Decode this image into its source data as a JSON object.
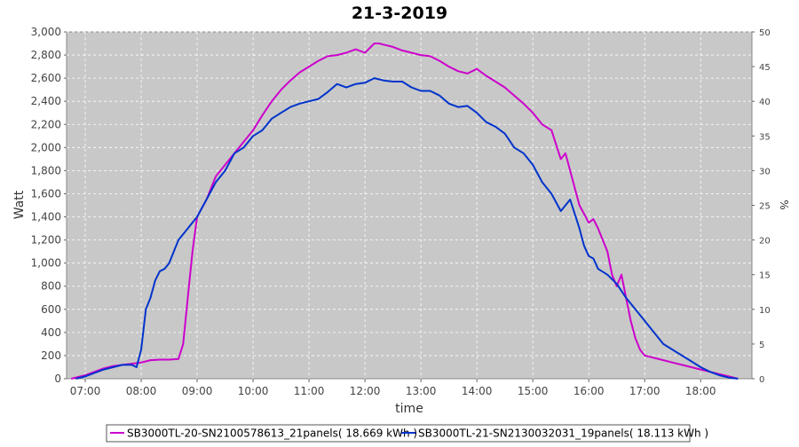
{
  "chart_data": {
    "type": "line",
    "title": "21-3-2019",
    "xlabel": "time",
    "ylabel": "Watt",
    "y2label": "%",
    "xlim": [
      "06:40",
      "18:55"
    ],
    "ylim": [
      0,
      3000
    ],
    "y2lim": [
      0,
      50
    ],
    "x_ticks": [
      "07:00",
      "08:00",
      "09:00",
      "10:00",
      "11:00",
      "12:00",
      "13:00",
      "14:00",
      "15:00",
      "16:00",
      "17:00",
      "18:00"
    ],
    "y_ticks": [
      0,
      200,
      400,
      600,
      800,
      1000,
      1200,
      1400,
      1600,
      1800,
      2000,
      2200,
      2400,
      2600,
      2800,
      3000
    ],
    "y_tick_labels": [
      "0",
      "200",
      "400",
      "600",
      "800",
      "1,000",
      "1,200",
      "1,400",
      "1,600",
      "1,800",
      "2,000",
      "2,200",
      "2,400",
      "2,600",
      "2,800",
      "3,000"
    ],
    "y2_ticks": [
      0,
      5,
      10,
      15,
      20,
      25,
      30,
      35,
      40,
      45,
      50
    ],
    "grid": true,
    "legend_position": "bottom",
    "colors": {
      "plot_bg": "#c8c8c8",
      "grid": "#ffffff",
      "series1": "#cc00cc",
      "series2": "#0033cc"
    },
    "series": [
      {
        "name": "SB3000TL-20-SN2100578613_21panels( 18.669 kWh )",
        "color": "#cc00cc",
        "x": [
          "06:45",
          "07:00",
          "07:10",
          "07:20",
          "07:30",
          "07:40",
          "07:50",
          "08:00",
          "08:10",
          "08:20",
          "08:30",
          "08:40",
          "08:45",
          "08:50",
          "08:55",
          "09:00",
          "09:10",
          "09:20",
          "09:30",
          "09:40",
          "09:50",
          "10:00",
          "10:10",
          "10:20",
          "10:30",
          "10:40",
          "10:50",
          "11:00",
          "11:10",
          "11:20",
          "11:30",
          "11:40",
          "11:50",
          "12:00",
          "12:10",
          "12:15",
          "12:20",
          "12:30",
          "12:40",
          "12:50",
          "13:00",
          "13:10",
          "13:20",
          "13:30",
          "13:40",
          "13:50",
          "14:00",
          "14:10",
          "14:20",
          "14:30",
          "14:40",
          "14:50",
          "15:00",
          "15:10",
          "15:20",
          "15:30",
          "15:35",
          "15:40",
          "15:45",
          "15:50",
          "16:00",
          "16:05",
          "16:10",
          "16:20",
          "16:25",
          "16:30",
          "16:35",
          "16:40",
          "16:45",
          "16:50",
          "16:55",
          "17:00",
          "17:05",
          "17:10",
          "17:20",
          "17:30",
          "17:40",
          "17:50",
          "18:00",
          "18:10",
          "18:20",
          "18:30",
          "18:40"
        ],
        "values": [
          0,
          30,
          60,
          90,
          110,
          120,
          130,
          140,
          160,
          165,
          165,
          170,
          300,
          700,
          1100,
          1400,
          1550,
          1750,
          1850,
          1950,
          2050,
          2150,
          2280,
          2400,
          2500,
          2580,
          2650,
          2700,
          2750,
          2790,
          2800,
          2820,
          2850,
          2820,
          2900,
          2900,
          2890,
          2870,
          2840,
          2820,
          2800,
          2790,
          2750,
          2700,
          2660,
          2640,
          2680,
          2620,
          2570,
          2520,
          2450,
          2380,
          2300,
          2200,
          2150,
          1900,
          1950,
          1800,
          1650,
          1500,
          1350,
          1380,
          1300,
          1100,
          900,
          800,
          900,
          700,
          500,
          350,
          250,
          200,
          190,
          180,
          160,
          140,
          120,
          100,
          80,
          60,
          40,
          20,
          0
        ]
      },
      {
        "name": "SB3000TL-21-SN2130032031_19panels( 18.113 kWh )",
        "color": "#0033cc",
        "x": [
          "06:50",
          "07:00",
          "07:10",
          "07:20",
          "07:30",
          "07:40",
          "07:50",
          "07:55",
          "08:00",
          "08:05",
          "08:10",
          "08:15",
          "08:20",
          "08:25",
          "08:30",
          "08:40",
          "08:50",
          "09:00",
          "09:10",
          "09:20",
          "09:30",
          "09:40",
          "09:50",
          "10:00",
          "10:10",
          "10:20",
          "10:30",
          "10:40",
          "10:50",
          "11:00",
          "11:10",
          "11:20",
          "11:30",
          "11:40",
          "11:50",
          "12:00",
          "12:10",
          "12:20",
          "12:30",
          "12:40",
          "12:50",
          "13:00",
          "13:10",
          "13:20",
          "13:30",
          "13:40",
          "13:50",
          "14:00",
          "14:10",
          "14:20",
          "14:30",
          "14:40",
          "14:50",
          "15:00",
          "15:10",
          "15:20",
          "15:30",
          "15:40",
          "15:50",
          "15:55",
          "16:00",
          "16:05",
          "16:10",
          "16:20",
          "16:30",
          "16:40",
          "16:50",
          "17:00",
          "17:10",
          "17:20",
          "17:30",
          "17:40",
          "17:50",
          "18:00",
          "18:10",
          "18:20",
          "18:30",
          "18:40"
        ],
        "values": [
          0,
          20,
          50,
          80,
          100,
          120,
          120,
          100,
          250,
          600,
          700,
          850,
          930,
          950,
          1000,
          1200,
          1300,
          1400,
          1550,
          1700,
          1800,
          1950,
          2000,
          2100,
          2150,
          2250,
          2300,
          2350,
          2380,
          2400,
          2420,
          2480,
          2550,
          2520,
          2550,
          2560,
          2600,
          2580,
          2570,
          2570,
          2520,
          2490,
          2490,
          2450,
          2380,
          2350,
          2360,
          2300,
          2220,
          2180,
          2120,
          2000,
          1950,
          1850,
          1700,
          1600,
          1450,
          1550,
          1300,
          1150,
          1060,
          1040,
          950,
          900,
          820,
          700,
          600,
          500,
          400,
          300,
          250,
          200,
          150,
          100,
          60,
          30,
          10,
          0
        ]
      }
    ]
  }
}
